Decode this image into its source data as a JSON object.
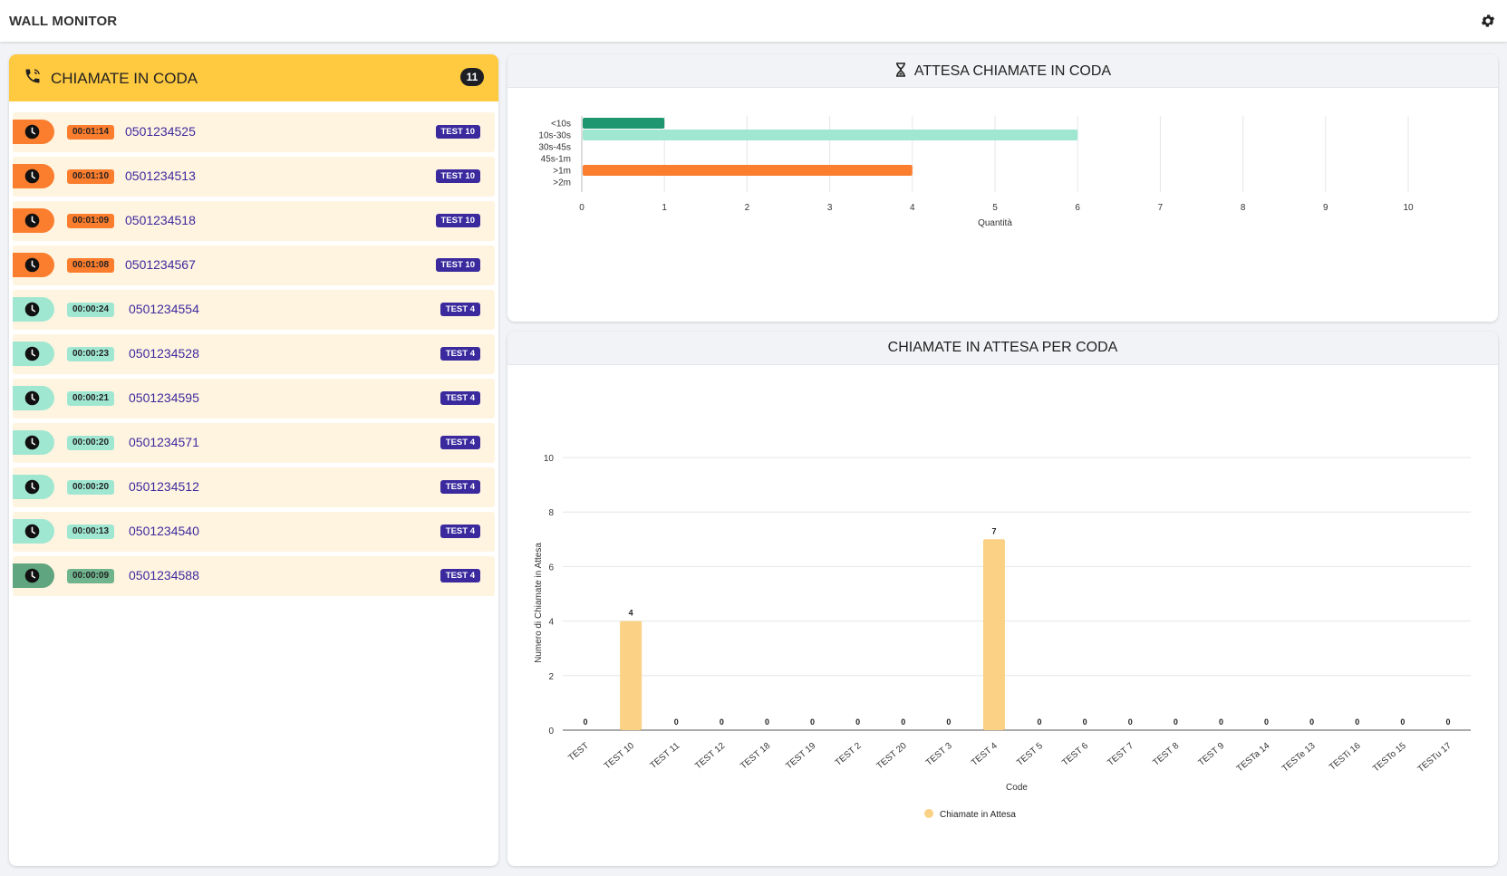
{
  "app": {
    "title": "WALL MONITOR"
  },
  "queue": {
    "title": "CHIAMATE IN CODA",
    "count": "11",
    "calls": [
      {
        "duration": "00:01:14",
        "number": "0501234525",
        "queue": "TEST 10",
        "level": "long"
      },
      {
        "duration": "00:01:10",
        "number": "0501234513",
        "queue": "TEST 10",
        "level": "long"
      },
      {
        "duration": "00:01:09",
        "number": "0501234518",
        "queue": "TEST 10",
        "level": "long"
      },
      {
        "duration": "00:01:08",
        "number": "0501234567",
        "queue": "TEST 10",
        "level": "long"
      },
      {
        "duration": "00:00:24",
        "number": "0501234554",
        "queue": "TEST 4",
        "level": "medium"
      },
      {
        "duration": "00:00:23",
        "number": "0501234528",
        "queue": "TEST 4",
        "level": "medium"
      },
      {
        "duration": "00:00:21",
        "number": "0501234595",
        "queue": "TEST 4",
        "level": "medium"
      },
      {
        "duration": "00:00:20",
        "number": "0501234571",
        "queue": "TEST 4",
        "level": "medium"
      },
      {
        "duration": "00:00:20",
        "number": "0501234512",
        "queue": "TEST 4",
        "level": "medium"
      },
      {
        "duration": "00:00:13",
        "number": "0501234540",
        "queue": "TEST 4",
        "level": "medium"
      },
      {
        "duration": "00:00:09",
        "number": "0501234588",
        "queue": "TEST 4",
        "level": "short"
      }
    ]
  },
  "colors": {
    "long": "#fb7d2e",
    "medium": "#a0e7d2",
    "short": "#5fa57f",
    "short_chip": "#6fb48d",
    "header": "#ffc940",
    "badge": "#3a2a9e",
    "bar_lt10": "#1e9670",
    "bar_1030": "#a0e7d2",
    "bar_gt1m": "#fb7d2e",
    "bar_queue": "#fbd185"
  },
  "chart_data": [
    {
      "type": "bar",
      "orientation": "horizontal",
      "title": "ATTESA CHIAMATE IN CODA",
      "categories": [
        "<10s",
        "10s-30s",
        "30s-45s",
        "45s-1m",
        ">1m",
        ">2m"
      ],
      "values": [
        1,
        6,
        0,
        0,
        4,
        0
      ],
      "xlabel": "Quantità",
      "xlim": [
        0,
        10
      ],
      "xticks": [
        "0",
        "1",
        "2",
        "3",
        "4",
        "5",
        "6",
        "7",
        "8",
        "9",
        "10"
      ],
      "grid": true
    },
    {
      "type": "bar",
      "title": "CHIAMATE IN ATTESA PER CODA",
      "categories": [
        "TEST",
        "TEST 10",
        "TEST 11",
        "TEST 12",
        "TEST 18",
        "TEST 19",
        "TEST 2",
        "TEST 20",
        "TEST 3",
        "TEST 4",
        "TEST 5",
        "TEST 6",
        "TEST 7",
        "TEST 8",
        "TEST 9",
        "TESTa 14",
        "TESTe 13",
        "TESTi 16",
        "TESTo 15",
        "TESTu 17"
      ],
      "series": [
        {
          "name": "Chiamate in Attesa",
          "values": [
            0,
            4,
            0,
            0,
            0,
            0,
            0,
            0,
            0,
            7,
            0,
            0,
            0,
            0,
            0,
            0,
            0,
            0,
            0,
            0
          ]
        }
      ],
      "xlabel": "Code",
      "ylabel": "Numero di Chiamate in Attesa",
      "ylim": [
        0,
        10
      ],
      "yticks": [
        "0",
        "2",
        "4",
        "6",
        "8",
        "10"
      ],
      "legend": "bottom",
      "grid": true
    }
  ]
}
